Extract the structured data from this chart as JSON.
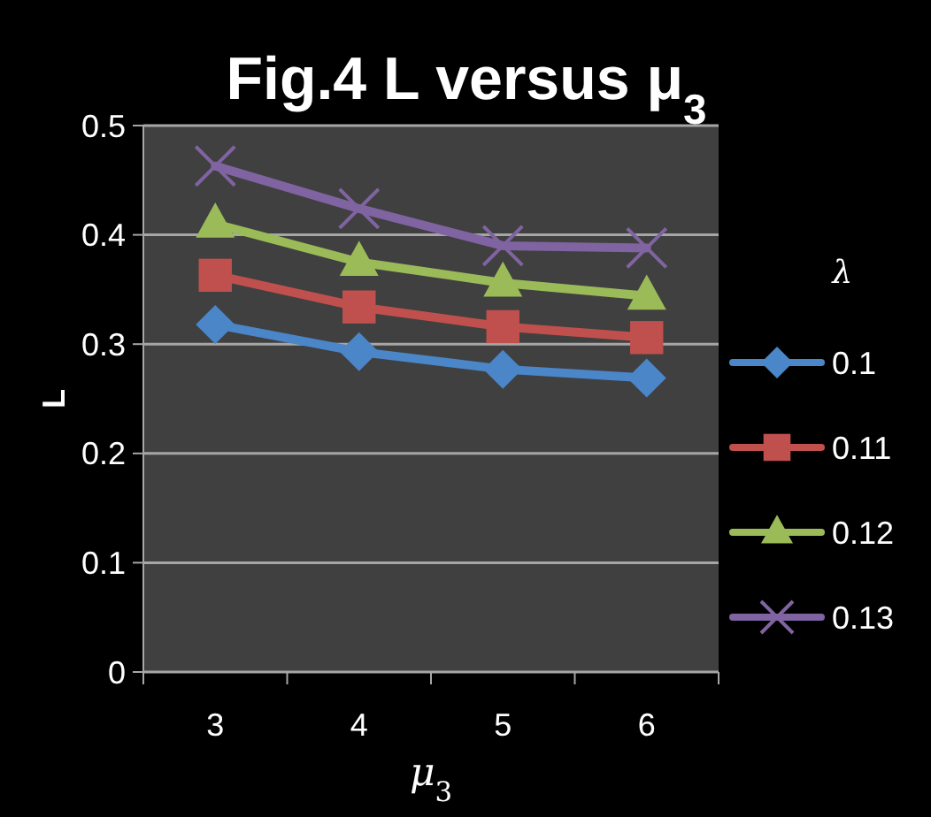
{
  "chart_data": {
    "type": "line",
    "title": "Fig.4 L versus μ$_{3}$",
    "xlabel": "μ$_{3}$",
    "ylabel": "L",
    "legend_title": "λ",
    "categories": [
      "3",
      "4",
      "5",
      "6"
    ],
    "ylim": [
      0,
      0.5
    ],
    "yticks": [
      0,
      0.1,
      0.2,
      0.3,
      0.4,
      0.5
    ],
    "grid": "y",
    "legend": "right",
    "series": [
      {
        "name": "0.1",
        "color": "#4a86c8",
        "marker": "diamond",
        "values": [
          0.318,
          0.293,
          0.277,
          0.269
        ]
      },
      {
        "name": "0.11",
        "color": "#c0504d",
        "marker": "square",
        "values": [
          0.363,
          0.334,
          0.316,
          0.306
        ]
      },
      {
        "name": "0.12",
        "color": "#9bbb59",
        "marker": "triangle",
        "values": [
          0.41,
          0.375,
          0.356,
          0.344
        ]
      },
      {
        "name": "0.13",
        "color": "#8064a2",
        "marker": "cross",
        "values": [
          0.463,
          0.424,
          0.39,
          0.388
        ]
      }
    ]
  }
}
